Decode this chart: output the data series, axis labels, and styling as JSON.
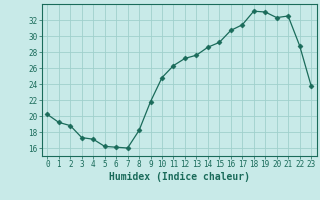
{
  "x": [
    0,
    1,
    2,
    3,
    4,
    5,
    6,
    7,
    8,
    9,
    10,
    11,
    12,
    13,
    14,
    15,
    16,
    17,
    18,
    19,
    20,
    21,
    22,
    23
  ],
  "y": [
    20.2,
    19.2,
    18.8,
    17.3,
    17.1,
    16.2,
    16.1,
    16.0,
    18.2,
    21.8,
    24.8,
    26.3,
    27.2,
    27.6,
    28.6,
    29.2,
    30.7,
    31.4,
    33.1,
    33.0,
    32.3,
    32.5,
    28.8,
    23.8
  ],
  "line_color": "#1a6b5a",
  "marker": "D",
  "marker_size": 2.5,
  "bg_color": "#c8eae8",
  "grid_color": "#a0d0cc",
  "xlabel": "Humidex (Indice chaleur)",
  "xlim": [
    -0.5,
    23.5
  ],
  "ylim": [
    15.0,
    34.0
  ],
  "yticks": [
    16,
    18,
    20,
    22,
    24,
    26,
    28,
    30,
    32
  ],
  "xticks": [
    0,
    1,
    2,
    3,
    4,
    5,
    6,
    7,
    8,
    9,
    10,
    11,
    12,
    13,
    14,
    15,
    16,
    17,
    18,
    19,
    20,
    21,
    22,
    23
  ],
  "tick_fontsize": 5.5,
  "xlabel_fontsize": 7
}
